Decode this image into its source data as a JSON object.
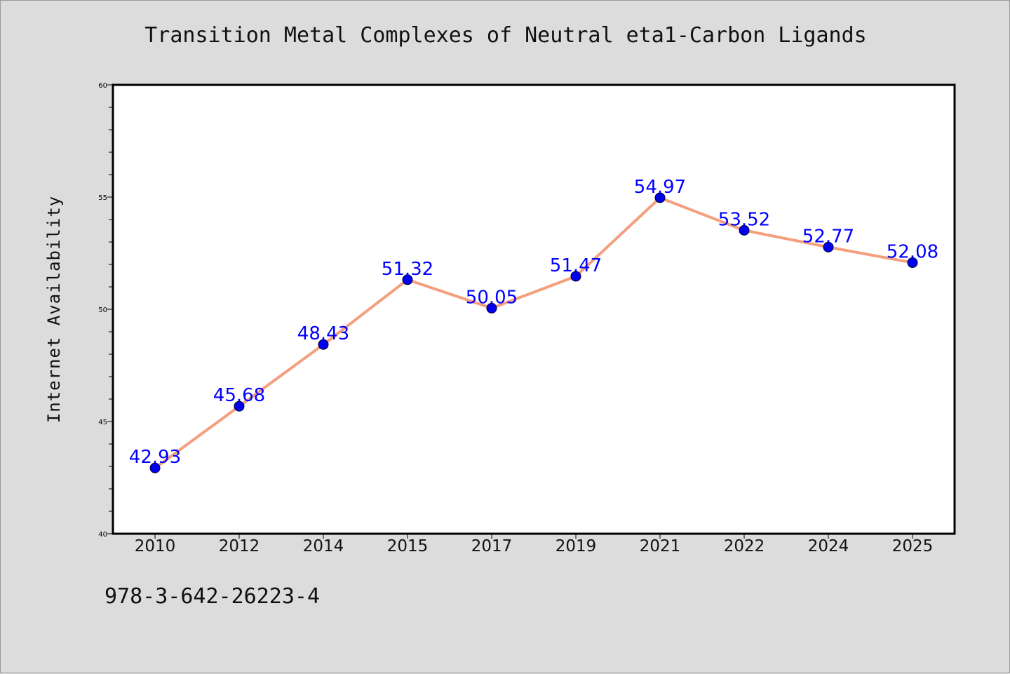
{
  "chart_data": {
    "type": "line",
    "title": "Transition Metal Complexes of Neutral eta1-Carbon Ligands",
    "xlabel": "",
    "ylabel": "Internet Availability",
    "categories": [
      "2010",
      "2012",
      "2014",
      "2015",
      "2017",
      "2019",
      "2021",
      "2022",
      "2024",
      "2025"
    ],
    "series": [
      {
        "values": [
          42.93,
          45.68,
          48.43,
          51.32,
          50.05,
          51.47,
          54.97,
          53.52,
          52.77,
          52.08
        ],
        "data_labels": [
          "42.93",
          "45.68",
          "48.43",
          "51.32",
          "50.05",
          "51.47",
          "54.97",
          "53.52",
          "52.77",
          "52.08"
        ]
      }
    ],
    "ylim": [
      40,
      60
    ],
    "yticks": [
      "40",
      "45",
      "50",
      "55",
      "60"
    ],
    "grid": false,
    "legend": "none",
    "colors": {
      "line": "#f4a07e",
      "marker": "#0000ee",
      "data_label": "#0000ff",
      "plot_background": "#ffffff",
      "page_background": "#dcdcdc"
    }
  },
  "footer": {
    "code": "978-3-642-26223-4"
  }
}
